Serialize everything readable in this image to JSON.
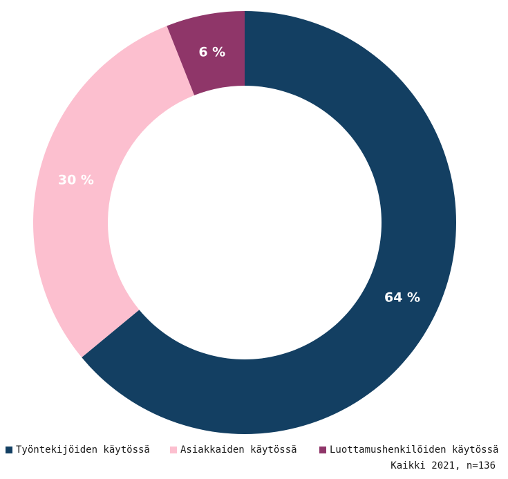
{
  "chart_data": {
    "type": "pie",
    "variant": "donut",
    "categories": [
      "Työntekijöiden käytössä",
      "Asiakkaiden käytössä",
      "Luottamushenkilöiden käytössä"
    ],
    "values": [
      64,
      30,
      6
    ],
    "value_labels": [
      "64 %",
      "30 %",
      "6 %"
    ],
    "colors": [
      "#133f62",
      "#fcbfcf",
      "#8f3669"
    ],
    "legend_position": "bottom",
    "footnote": "Kaikki 2021, n=136"
  }
}
